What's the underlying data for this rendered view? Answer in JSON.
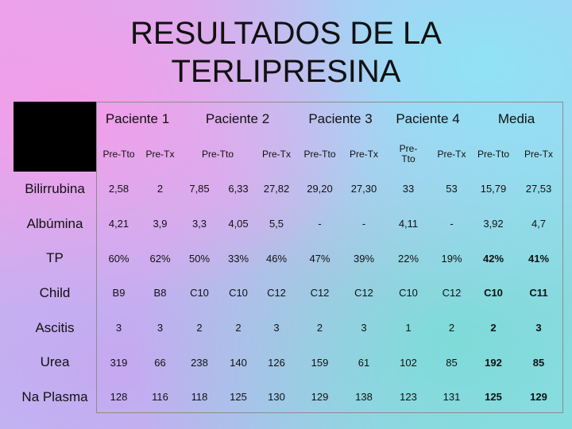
{
  "title": {
    "line1": "RESULTADOS DE LA",
    "line2": "TERLIPRESINA"
  },
  "patients": [
    "Paciente 1",
    "Paciente 2",
    "Paciente 3",
    "Paciente 4",
    "Media"
  ],
  "subheaders": {
    "p1_pre": "Pre-Tto",
    "p1_tx": "Pre-Tx",
    "p2_pre": "Pre-Tto",
    "p2_tx": "Pre-Tx",
    "p3_pre": "Pre-Tto",
    "p3_tx": "Pre-Tx",
    "p4_pre_a": "Pre-",
    "p4_pre_b": "Tto",
    "p4_tx": "Pre-Tx",
    "m_pre": "Pre-Tto",
    "m_tx": "Pre-Tx"
  },
  "rows": [
    {
      "label": "Bilirrubina",
      "values": [
        "2,58",
        "2",
        "7,85",
        "6,33",
        "27,82",
        "29,20",
        "27,30",
        "33",
        "53",
        "15,79",
        "27,53"
      ]
    },
    {
      "label": "Albúmina",
      "values": [
        "4,21",
        "3,9",
        "3,3",
        "4,05",
        "5,5",
        "-",
        "-",
        "4,11",
        "-",
        "3,92",
        "4,7"
      ]
    },
    {
      "label": "TP",
      "values": [
        "60%",
        "62%",
        "50%",
        "33%",
        "46%",
        "47%",
        "39%",
        "22%",
        "19%",
        "42%",
        "41%"
      ]
    },
    {
      "label": "Child",
      "values": [
        "B9",
        "B8",
        "C10",
        "C10",
        "C12",
        "C12",
        "C12",
        "C10",
        "C12",
        "C10",
        "C11"
      ]
    },
    {
      "label": "Ascitis",
      "values": [
        "3",
        "3",
        "2",
        "2",
        "3",
        "2",
        "3",
        "1",
        "2",
        "2",
        "3"
      ]
    },
    {
      "label": "Urea",
      "values": [
        "319",
        "66",
        "238",
        "140",
        "126",
        "159",
        "61",
        "102",
        "85",
        "192",
        "85"
      ]
    },
    {
      "label": "Na Plasma",
      "values": [
        "128",
        "116",
        "118",
        "125",
        "130",
        "129",
        "138",
        "123",
        "131",
        "125",
        "129"
      ]
    }
  ]
}
